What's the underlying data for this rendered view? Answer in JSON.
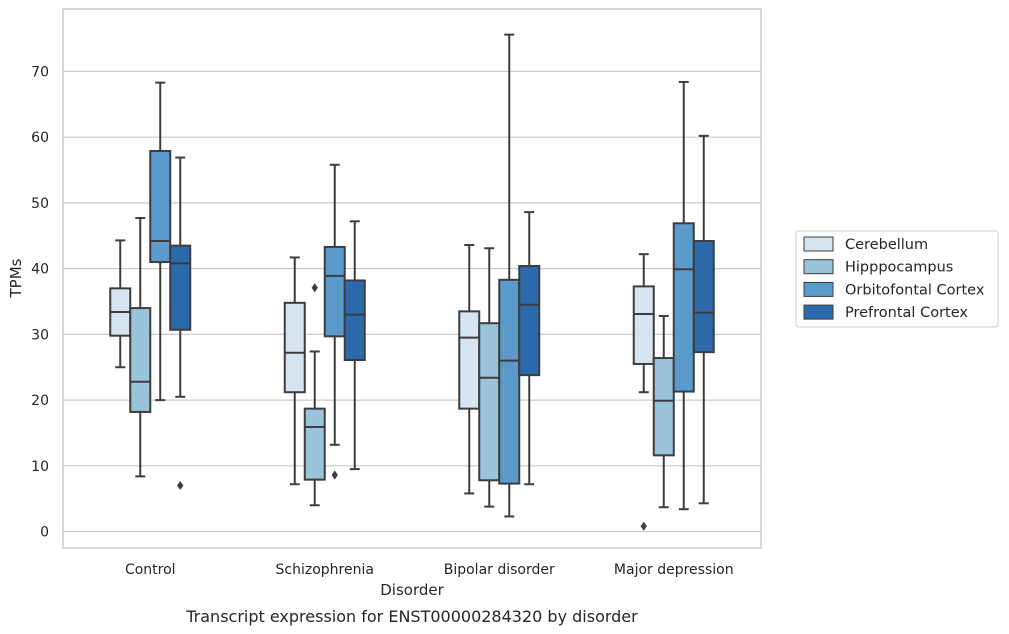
{
  "chart_data": {
    "type": "box",
    "caption": "Transcript expression for ENST00000284320 by disorder",
    "xlabel": "Disorder",
    "ylabel": "TPMs",
    "ylim": [
      -2.5,
      79.5
    ],
    "yticks": [
      0,
      10,
      20,
      30,
      40,
      50,
      60,
      70
    ],
    "grid": "horizontal",
    "legend_position": "right",
    "categories": [
      "Control",
      "Schizophrenia",
      "Bipolar disorder",
      "Major depression"
    ],
    "series": [
      {
        "name": "Cerebellum",
        "color": "#d6e4f2",
        "boxes": [
          {
            "whisker_low": 25.0,
            "q1": 29.8,
            "median": 33.4,
            "q3": 37.0,
            "whisker_high": 44.3,
            "outliers": []
          },
          {
            "whisker_low": 7.2,
            "q1": 21.2,
            "median": 27.2,
            "q3": 34.8,
            "whisker_high": 41.7,
            "outliers": []
          },
          {
            "whisker_low": 5.8,
            "q1": 18.7,
            "median": 29.5,
            "q3": 33.5,
            "whisker_high": 43.6,
            "outliers": []
          },
          {
            "whisker_low": 21.2,
            "q1": 25.5,
            "median": 33.1,
            "q3": 37.3,
            "whisker_high": 42.2,
            "outliers": [
              0.8
            ]
          }
        ]
      },
      {
        "name": "Hipppocampus",
        "color": "#9ac3dc",
        "boxes": [
          {
            "whisker_low": 8.4,
            "q1": 18.2,
            "median": 22.8,
            "q3": 34.0,
            "whisker_high": 47.7,
            "outliers": []
          },
          {
            "whisker_low": 4.0,
            "q1": 7.9,
            "median": 15.9,
            "q3": 18.7,
            "whisker_high": 27.4,
            "outliers": [
              37.1
            ]
          },
          {
            "whisker_low": 3.8,
            "q1": 7.8,
            "median": 23.4,
            "q3": 31.7,
            "whisker_high": 43.1,
            "outliers": []
          },
          {
            "whisker_low": 3.7,
            "q1": 11.6,
            "median": 19.9,
            "q3": 26.4,
            "whisker_high": 32.8,
            "outliers": []
          }
        ]
      },
      {
        "name": "Orbitofontal Cortex",
        "color": "#5a9bcb",
        "boxes": [
          {
            "whisker_low": 20.0,
            "q1": 41.0,
            "median": 44.2,
            "q3": 57.9,
            "whisker_high": 68.3,
            "outliers": []
          },
          {
            "whisker_low": 13.2,
            "q1": 29.7,
            "median": 38.9,
            "q3": 43.3,
            "whisker_high": 55.8,
            "outliers": [
              8.6
            ]
          },
          {
            "whisker_low": 2.3,
            "q1": 7.3,
            "median": 26.0,
            "q3": 38.3,
            "whisker_high": 75.6,
            "outliers": []
          },
          {
            "whisker_low": 3.4,
            "q1": 21.3,
            "median": 39.9,
            "q3": 46.9,
            "whisker_high": 68.4,
            "outliers": []
          }
        ]
      },
      {
        "name": "Prefrontal Cortex",
        "color": "#2c6aab",
        "boxes": [
          {
            "whisker_low": 20.5,
            "q1": 30.7,
            "median": 40.8,
            "q3": 43.5,
            "whisker_high": 56.9,
            "outliers": [
              7.0
            ]
          },
          {
            "whisker_low": 9.5,
            "q1": 26.1,
            "median": 33.0,
            "q3": 38.2,
            "whisker_high": 47.2,
            "outliers": []
          },
          {
            "whisker_low": 7.2,
            "q1": 23.8,
            "median": 34.5,
            "q3": 40.4,
            "whisker_high": 48.6,
            "outliers": []
          },
          {
            "whisker_low": 4.3,
            "q1": 27.3,
            "median": 33.3,
            "q3": 44.2,
            "whisker_high": 60.2,
            "outliers": []
          }
        ]
      }
    ]
  },
  "colors": {
    "grid": "#cccccc",
    "frame": "#cccccc",
    "box_edge": "#3d3d3d"
  }
}
